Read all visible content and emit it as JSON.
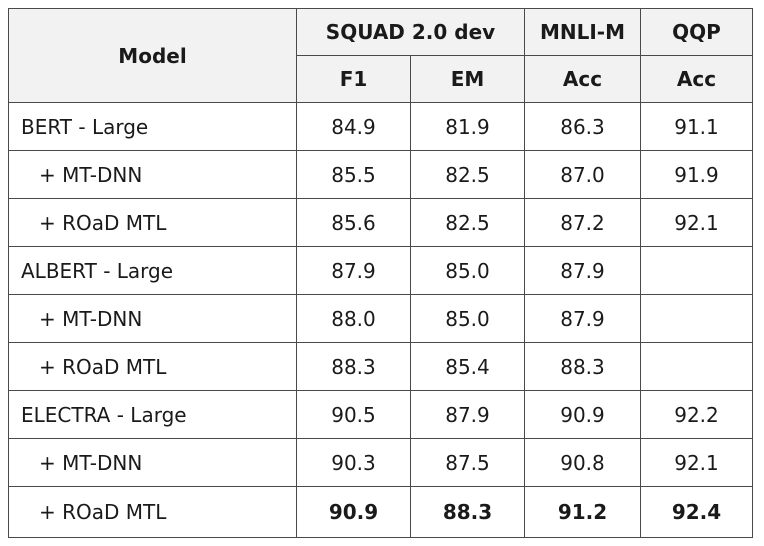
{
  "header": {
    "model": "Model",
    "groups": [
      "SQUAD 2.0 dev",
      "MNLI-M",
      "QQP"
    ],
    "metrics": [
      "F1",
      "EM",
      "Acc",
      "Acc"
    ]
  },
  "rows": [
    {
      "model": "BERT - Large",
      "sub": false,
      "f1": "84.9",
      "em": "81.9",
      "mnli": "86.3",
      "qqp": "91.1"
    },
    {
      "model": "+ MT-DNN",
      "sub": true,
      "f1": "85.5",
      "em": "82.5",
      "mnli": "87.0",
      "qqp": "91.9"
    },
    {
      "model": "+ ROaD MTL",
      "sub": true,
      "f1": "85.6",
      "em": "82.5",
      "mnli": "87.2",
      "qqp": "92.1"
    },
    {
      "model": "ALBERT - Large",
      "sub": false,
      "f1": "87.9",
      "em": "85.0",
      "mnli": "87.9",
      "qqp": ""
    },
    {
      "model": "+ MT-DNN",
      "sub": true,
      "f1": "88.0",
      "em": "85.0",
      "mnli": "87.9",
      "qqp": ""
    },
    {
      "model": "+ ROaD MTL",
      "sub": true,
      "f1": "88.3",
      "em": "85.4",
      "mnli": "88.3",
      "qqp": ""
    },
    {
      "model": "ELECTRA - Large",
      "sub": false,
      "f1": "90.5",
      "em": "87.9",
      "mnli": "90.9",
      "qqp": "92.2"
    },
    {
      "model": "+ MT-DNN",
      "sub": true,
      "f1": "90.3",
      "em": "87.5",
      "mnli": "90.8",
      "qqp": "92.1"
    },
    {
      "model": "+ ROaD MTL",
      "sub": true,
      "f1": "90.9",
      "em": "88.3",
      "mnli": "91.2",
      "qqp": "92.4",
      "bold": true
    }
  ]
}
